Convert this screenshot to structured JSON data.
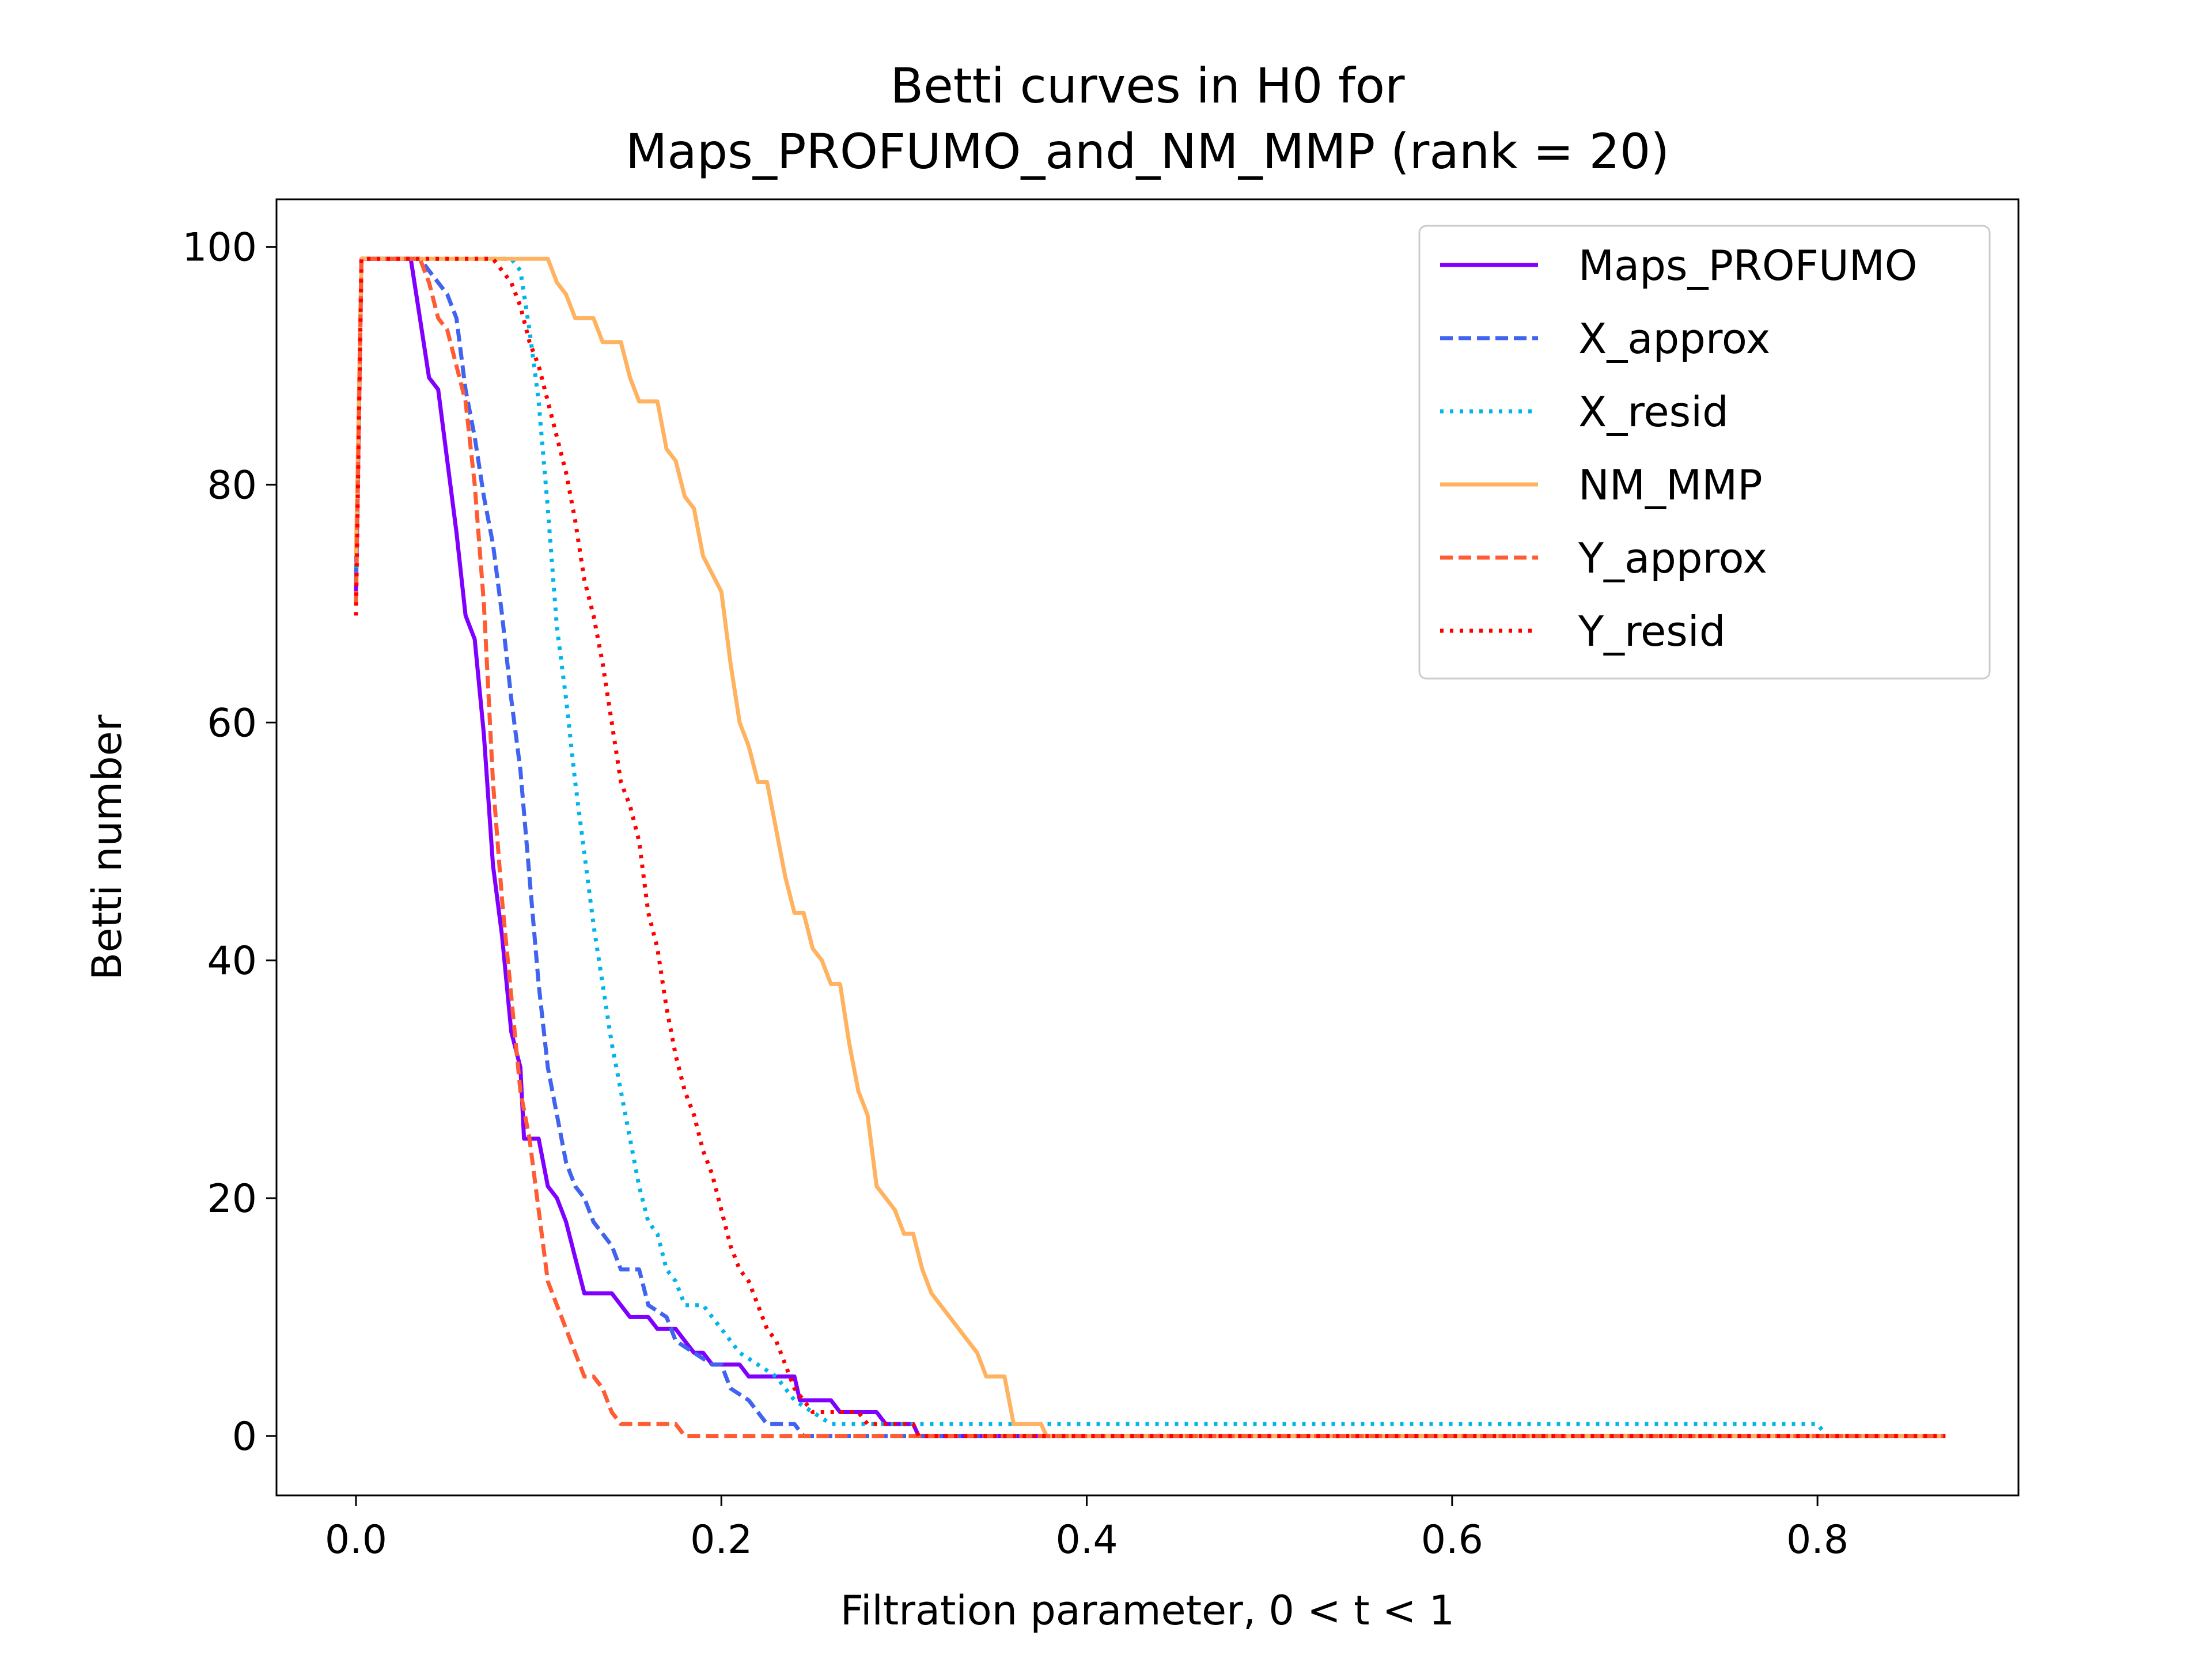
{
  "chart_data": {
    "type": "line",
    "title": [
      "Betti curves in H0 for",
      "Maps_PROFUMO_and_NM_MMP (rank = 20)"
    ],
    "xlabel": "Filtration parameter, 0 < t < 1",
    "ylabel": "Betti number",
    "xlim": [
      -0.0435,
      0.91
    ],
    "ylim": [
      -5,
      104
    ],
    "xticks": [
      0.0,
      0.2,
      0.4,
      0.6,
      0.8
    ],
    "xtick_labels": [
      "0.0",
      "0.2",
      "0.4",
      "0.6",
      "0.8"
    ],
    "yticks": [
      0,
      20,
      40,
      60,
      80,
      100
    ],
    "ytick_labels": [
      "0",
      "20",
      "40",
      "60",
      "80",
      "100"
    ],
    "grid": false,
    "legend_position": "top-right",
    "series": [
      {
        "name": "Maps_PROFUMO",
        "color": "#7f00ff",
        "dash": "solid",
        "points": [
          [
            0.0,
            71
          ],
          [
            0.003,
            99
          ],
          [
            0.03,
            99
          ],
          [
            0.035,
            94
          ],
          [
            0.04,
            89
          ],
          [
            0.045,
            88
          ],
          [
            0.05,
            82
          ],
          [
            0.055,
            76
          ],
          [
            0.06,
            69
          ],
          [
            0.065,
            67
          ],
          [
            0.07,
            59
          ],
          [
            0.075,
            48
          ],
          [
            0.08,
            42
          ],
          [
            0.085,
            34
          ],
          [
            0.09,
            31
          ],
          [
            0.092,
            25
          ],
          [
            0.1,
            25
          ],
          [
            0.105,
            21
          ],
          [
            0.11,
            20
          ],
          [
            0.115,
            18
          ],
          [
            0.12,
            15
          ],
          [
            0.125,
            12
          ],
          [
            0.14,
            12
          ],
          [
            0.145,
            11
          ],
          [
            0.15,
            10
          ],
          [
            0.16,
            10
          ],
          [
            0.165,
            9
          ],
          [
            0.175,
            9
          ],
          [
            0.18,
            8
          ],
          [
            0.185,
            7
          ],
          [
            0.19,
            7
          ],
          [
            0.195,
            6
          ],
          [
            0.21,
            6
          ],
          [
            0.215,
            5
          ],
          [
            0.24,
            5
          ],
          [
            0.243,
            3
          ],
          [
            0.26,
            3
          ],
          [
            0.265,
            2
          ],
          [
            0.285,
            2
          ],
          [
            0.29,
            1
          ],
          [
            0.305,
            1
          ],
          [
            0.308,
            0
          ],
          [
            0.87,
            0
          ]
        ]
      },
      {
        "name": "X_approx",
        "color": "#4063f0",
        "dash": "dashed",
        "points": [
          [
            0.0,
            72
          ],
          [
            0.003,
            99
          ],
          [
            0.035,
            99
          ],
          [
            0.04,
            98
          ],
          [
            0.05,
            96
          ],
          [
            0.055,
            94
          ],
          [
            0.06,
            88
          ],
          [
            0.065,
            84
          ],
          [
            0.07,
            79
          ],
          [
            0.075,
            75
          ],
          [
            0.08,
            69
          ],
          [
            0.085,
            62
          ],
          [
            0.09,
            56
          ],
          [
            0.095,
            47
          ],
          [
            0.1,
            38
          ],
          [
            0.105,
            31
          ],
          [
            0.11,
            27
          ],
          [
            0.115,
            23
          ],
          [
            0.12,
            21
          ],
          [
            0.125,
            20
          ],
          [
            0.13,
            18
          ],
          [
            0.14,
            16
          ],
          [
            0.145,
            14
          ],
          [
            0.155,
            14
          ],
          [
            0.16,
            11
          ],
          [
            0.17,
            10
          ],
          [
            0.175,
            8
          ],
          [
            0.185,
            7
          ],
          [
            0.195,
            6
          ],
          [
            0.2,
            6
          ],
          [
            0.205,
            4
          ],
          [
            0.215,
            3
          ],
          [
            0.225,
            1
          ],
          [
            0.24,
            1
          ],
          [
            0.245,
            0
          ],
          [
            0.87,
            0
          ]
        ]
      },
      {
        "name": "X_resid",
        "color": "#00b5eb",
        "dash": "dotted",
        "points": [
          [
            0.0,
            73
          ],
          [
            0.003,
            99
          ],
          [
            0.085,
            99
          ],
          [
            0.09,
            98
          ],
          [
            0.095,
            93
          ],
          [
            0.1,
            87
          ],
          [
            0.105,
            78
          ],
          [
            0.11,
            68
          ],
          [
            0.115,
            62
          ],
          [
            0.12,
            55
          ],
          [
            0.125,
            49
          ],
          [
            0.13,
            43
          ],
          [
            0.135,
            38
          ],
          [
            0.14,
            33
          ],
          [
            0.145,
            29
          ],
          [
            0.15,
            25
          ],
          [
            0.155,
            21
          ],
          [
            0.16,
            18
          ],
          [
            0.165,
            17
          ],
          [
            0.17,
            14
          ],
          [
            0.175,
            13
          ],
          [
            0.18,
            11
          ],
          [
            0.19,
            11
          ],
          [
            0.2,
            9
          ],
          [
            0.21,
            7
          ],
          [
            0.22,
            6
          ],
          [
            0.23,
            5
          ],
          [
            0.24,
            3
          ],
          [
            0.25,
            2
          ],
          [
            0.26,
            1
          ],
          [
            0.8,
            1
          ],
          [
            0.805,
            0
          ],
          [
            0.87,
            0
          ]
        ]
      },
      {
        "name": "NM_MMP",
        "color": "#ffb360",
        "dash": "solid",
        "points": [
          [
            0.0,
            74
          ],
          [
            0.003,
            99
          ],
          [
            0.105,
            99
          ],
          [
            0.11,
            97
          ],
          [
            0.115,
            96
          ],
          [
            0.12,
            94
          ],
          [
            0.13,
            94
          ],
          [
            0.135,
            92
          ],
          [
            0.145,
            92
          ],
          [
            0.15,
            89
          ],
          [
            0.155,
            87
          ],
          [
            0.165,
            87
          ],
          [
            0.17,
            83
          ],
          [
            0.175,
            82
          ],
          [
            0.18,
            79
          ],
          [
            0.185,
            78
          ],
          [
            0.19,
            74
          ],
          [
            0.2,
            71
          ],
          [
            0.205,
            65
          ],
          [
            0.21,
            60
          ],
          [
            0.215,
            58
          ],
          [
            0.22,
            55
          ],
          [
            0.225,
            55
          ],
          [
            0.23,
            51
          ],
          [
            0.235,
            47
          ],
          [
            0.24,
            44
          ],
          [
            0.245,
            44
          ],
          [
            0.25,
            41
          ],
          [
            0.255,
            40
          ],
          [
            0.26,
            38
          ],
          [
            0.265,
            38
          ],
          [
            0.27,
            33
          ],
          [
            0.275,
            29
          ],
          [
            0.28,
            27
          ],
          [
            0.285,
            21
          ],
          [
            0.29,
            20
          ],
          [
            0.295,
            19
          ],
          [
            0.3,
            17
          ],
          [
            0.305,
            17
          ],
          [
            0.31,
            14
          ],
          [
            0.315,
            12
          ],
          [
            0.32,
            11
          ],
          [
            0.325,
            10
          ],
          [
            0.33,
            9
          ],
          [
            0.335,
            8
          ],
          [
            0.34,
            7
          ],
          [
            0.345,
            5
          ],
          [
            0.355,
            5
          ],
          [
            0.36,
            1
          ],
          [
            0.375,
            1
          ],
          [
            0.378,
            0
          ],
          [
            0.87,
            0
          ]
        ]
      },
      {
        "name": "Y_approx",
        "color": "#ff5c33",
        "dash": "dashed",
        "points": [
          [
            0.0,
            70
          ],
          [
            0.003,
            99
          ],
          [
            0.035,
            99
          ],
          [
            0.04,
            97
          ],
          [
            0.045,
            94
          ],
          [
            0.05,
            93
          ],
          [
            0.055,
            90
          ],
          [
            0.06,
            87
          ],
          [
            0.065,
            80
          ],
          [
            0.07,
            70
          ],
          [
            0.075,
            55
          ],
          [
            0.08,
            45
          ],
          [
            0.085,
            37
          ],
          [
            0.09,
            29
          ],
          [
            0.095,
            25
          ],
          [
            0.1,
            19
          ],
          [
            0.105,
            13
          ],
          [
            0.11,
            11
          ],
          [
            0.115,
            9
          ],
          [
            0.12,
            7
          ],
          [
            0.125,
            5
          ],
          [
            0.13,
            5
          ],
          [
            0.135,
            4
          ],
          [
            0.14,
            2
          ],
          [
            0.145,
            1
          ],
          [
            0.15,
            1
          ],
          [
            0.155,
            1
          ],
          [
            0.175,
            1
          ],
          [
            0.18,
            0
          ],
          [
            0.87,
            0
          ]
        ]
      },
      {
        "name": "Y_resid",
        "color": "#ff0000",
        "dash": "dotted",
        "points": [
          [
            0.0,
            69
          ],
          [
            0.003,
            99
          ],
          [
            0.075,
            99
          ],
          [
            0.08,
            98
          ],
          [
            0.085,
            97
          ],
          [
            0.09,
            95
          ],
          [
            0.095,
            92
          ],
          [
            0.1,
            90
          ],
          [
            0.105,
            87
          ],
          [
            0.11,
            84
          ],
          [
            0.115,
            81
          ],
          [
            0.12,
            77
          ],
          [
            0.125,
            72
          ],
          [
            0.13,
            69
          ],
          [
            0.135,
            65
          ],
          [
            0.14,
            60
          ],
          [
            0.145,
            55
          ],
          [
            0.15,
            53
          ],
          [
            0.155,
            50
          ],
          [
            0.16,
            44
          ],
          [
            0.165,
            41
          ],
          [
            0.17,
            36
          ],
          [
            0.175,
            32
          ],
          [
            0.18,
            29
          ],
          [
            0.185,
            27
          ],
          [
            0.19,
            24
          ],
          [
            0.195,
            22
          ],
          [
            0.2,
            19
          ],
          [
            0.205,
            16
          ],
          [
            0.21,
            14
          ],
          [
            0.215,
            13
          ],
          [
            0.22,
            11
          ],
          [
            0.225,
            9
          ],
          [
            0.23,
            8
          ],
          [
            0.235,
            6
          ],
          [
            0.24,
            4
          ],
          [
            0.245,
            3
          ],
          [
            0.25,
            2
          ],
          [
            0.275,
            2
          ],
          [
            0.28,
            1
          ],
          [
            0.305,
            1
          ],
          [
            0.308,
            0
          ],
          [
            0.87,
            0
          ]
        ]
      }
    ]
  }
}
